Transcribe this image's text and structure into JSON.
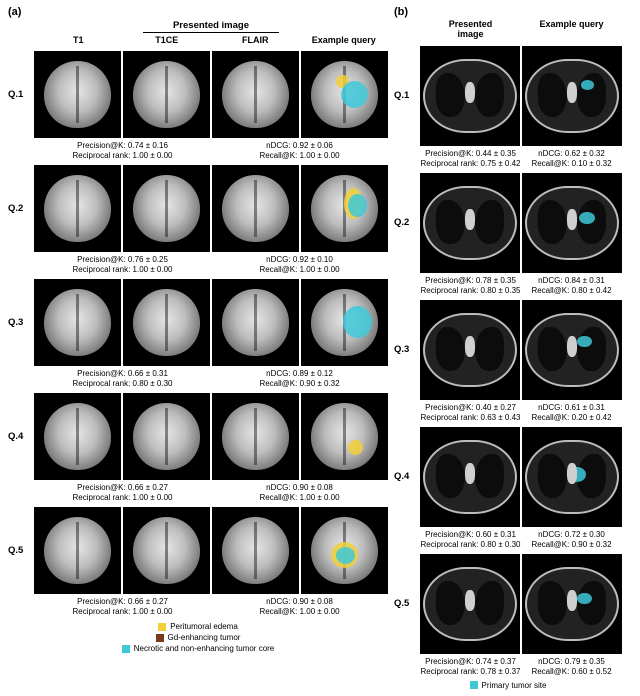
{
  "panel_a": {
    "label": "(a)",
    "presented_label": "Presented image",
    "columns": [
      "T1",
      "T1CE",
      "FLAIR",
      "Example query"
    ],
    "rows": [
      {
        "q": "Q.1",
        "precK": "Precision@K: 0.74 ± 0.16",
        "ndcg": "nDCG: 0.92 ± 0.06",
        "rr": "Reciprocal rank: 1.00 ± 0.00",
        "recK": "Recall@K: 1.00 ± 0.00",
        "overlay": {
          "cyan": {
            "l": "45%",
            "t": "30%",
            "w": "40%",
            "h": "40%"
          },
          "yellow": {
            "l": "38%",
            "t": "22%",
            "w": "18%",
            "h": "18%"
          }
        }
      },
      {
        "q": "Q.2",
        "precK": "Precision@K: 0.76 ± 0.25",
        "ndcg": "nDCG: 0.92 ± 0.10",
        "rr": "Reciprocal rank: 1.00 ± 0.00",
        "recK": "Recall@K: 1.00 ± 0.00",
        "overlay": {
          "cyan": {
            "l": "55%",
            "t": "28%",
            "w": "28%",
            "h": "35%"
          },
          "yellow": {
            "l": "50%",
            "t": "20%",
            "w": "28%",
            "h": "45%"
          }
        }
      },
      {
        "q": "Q.3",
        "precK": "Precision@K: 0.66 ± 0.31",
        "ndcg": "nDCG: 0.89 ± 0.12",
        "rr": "Reciprocal rank: 0.80 ± 0.30",
        "recK": "Recall@K: 0.90 ± 0.32",
        "overlay": {
          "cyan": {
            "l": "48%",
            "t": "25%",
            "w": "42%",
            "h": "48%"
          },
          "yellow": null
        }
      },
      {
        "q": "Q.4",
        "precK": "Precision@K: 0.66 ± 0.27",
        "ndcg": "nDCG: 0.90 ± 0.08",
        "rr": "Reciprocal rank: 1.00 ± 0.00",
        "recK": "Recall@K: 1.00 ± 0.00",
        "overlay": {
          "cyan": null,
          "yellow": {
            "l": "55%",
            "t": "55%",
            "w": "22%",
            "h": "22%"
          }
        }
      },
      {
        "q": "Q.5",
        "precK": "Precision@K: 0.66 ± 0.27",
        "ndcg": "nDCG: 0.90 ± 0.08",
        "rr": "Reciprocal rank: 1.00 ± 0.00",
        "recK": "Recall@K: 1.00 ± 0.00",
        "overlay": {
          "cyan": {
            "l": "38%",
            "t": "45%",
            "w": "28%",
            "h": "25%"
          },
          "yellow": {
            "l": "30%",
            "t": "38%",
            "w": "40%",
            "h": "38%"
          }
        }
      }
    ],
    "legend": [
      {
        "color": "#f2cf3a",
        "label": "Peritumoral edema"
      },
      {
        "color": "#7a3a1f",
        "label": "Gd-enhancing tumor"
      },
      {
        "color": "#3ec8d8",
        "label": "Necrotic and non-enhancing tumor core"
      }
    ]
  },
  "panel_b": {
    "label": "(b)",
    "columns": [
      "Presented\nimage",
      "Example query"
    ],
    "rows": [
      {
        "q": "Q.1",
        "precK": "Precision@K: 0.44 ± 0.35",
        "ndcg": "nDCG: 0.62 ± 0.32",
        "rr": "Reciprocal rank: 0.75 ± 0.42",
        "recK": "Recall@K: 0.10 ± 0.32",
        "overlay": {
          "cyan": {
            "l": "60%",
            "t": "28%",
            "w": "14%",
            "h": "14%"
          }
        }
      },
      {
        "q": "Q.2",
        "precK": "Precision@K: 0.78 ± 0.35",
        "ndcg": "nDCG: 0.84 ± 0.31",
        "rr": "Reciprocal rank: 0.80 ± 0.35",
        "recK": "Recall@K: 0.80 ± 0.42",
        "overlay": {
          "cyan": {
            "l": "58%",
            "t": "34%",
            "w": "18%",
            "h": "18%"
          }
        }
      },
      {
        "q": "Q.3",
        "precK": "Precision@K: 0.40 ± 0.27",
        "ndcg": "nDCG: 0.61 ± 0.31",
        "rr": "Reciprocal rank: 0.63 ± 0.43",
        "recK": "Recall@K: 0.20 ± 0.42",
        "overlay": {
          "cyan": {
            "l": "56%",
            "t": "30%",
            "w": "16%",
            "h": "16%"
          }
        }
      },
      {
        "q": "Q.4",
        "precK": "Precision@K: 0.60 ± 0.31",
        "ndcg": "nDCG: 0.72 ± 0.30",
        "rr": "Reciprocal rank: 0.80 ± 0.30",
        "recK": "Recall@K: 0.90 ± 0.32",
        "overlay": {
          "cyan": {
            "l": "46%",
            "t": "36%",
            "w": "20%",
            "h": "22%"
          }
        }
      },
      {
        "q": "Q.5",
        "precK": "Precision@K: 0.74 ± 0.37",
        "ndcg": "nDCG: 0.79 ± 0.35",
        "rr": "Reciprocal rank: 0.78 ± 0.37",
        "recK": "Recall@K: 0.60 ± 0.52",
        "overlay": {
          "cyan": {
            "l": "56%",
            "t": "34%",
            "w": "16%",
            "h": "16%"
          }
        }
      }
    ],
    "legend": {
      "color": "#3ec8d8",
      "label": "Primary tumor site"
    }
  }
}
